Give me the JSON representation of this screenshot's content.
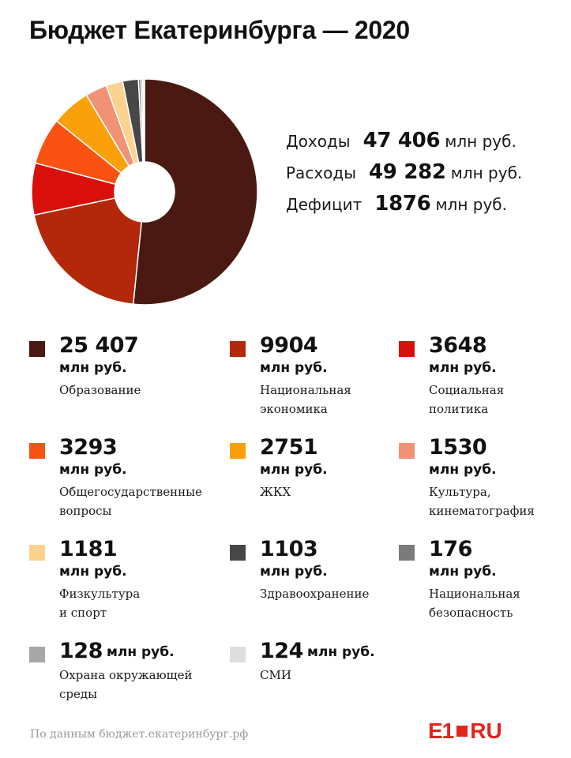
{
  "title": "Бюджет Екатеринбурга — 2020",
  "summary": [
    {
      "label": "Доходы",
      "value": "47 406",
      "unit": "млн руб."
    },
    {
      "label": "Расходы",
      "value": "49 282",
      "unit": "млн руб."
    },
    {
      "label": "Дефицит",
      "value": "1876",
      "unit": "млн руб."
    }
  ],
  "chart_data": {
    "type": "pie",
    "series": [
      {
        "category": "Образование",
        "value": 25407,
        "label": "25 407",
        "color": "#4a1a12"
      },
      {
        "category": "Национальная экономика",
        "value": 9904,
        "label": "9904",
        "color": "#b3280b"
      },
      {
        "category": "Социальная политика",
        "value": 3648,
        "label": "3648",
        "color": "#d90f0b"
      },
      {
        "category": "Общегосударственные вопросы",
        "value": 3293,
        "label": "3293",
        "color": "#fa5212"
      },
      {
        "category": "ЖКХ",
        "value": 2751,
        "label": "2751",
        "color": "#f9a00a"
      },
      {
        "category": "Культура, кинематография",
        "value": 1530,
        "label": "1530",
        "color": "#f19277"
      },
      {
        "category": "Физкультура и спорт",
        "value": 1181,
        "label": "1181",
        "color": "#fcd28f"
      },
      {
        "category": "Здравоохранение",
        "value": 1103,
        "label": "1103",
        "color": "#474747"
      },
      {
        "category": "Национальная безопасность",
        "value": 176,
        "label": "176",
        "color": "#7b7b7b"
      },
      {
        "category": "Охрана окружающей среды",
        "value": 128,
        "label": "128",
        "color": "#a8a8a8"
      },
      {
        "category": "СМИ",
        "value": 124,
        "label": "124",
        "color": "#dedede"
      }
    ],
    "unit": "млн руб.",
    "legend": "bottom",
    "donut": true
  },
  "legend_items": [
    {
      "value": "25 407",
      "unit": "млн руб.",
      "lines": [
        "Образование"
      ],
      "color": "#4a1a12"
    },
    {
      "value": "9904",
      "unit": "млн руб.",
      "lines": [
        "Национальная",
        "экономика"
      ],
      "color": "#b3280b"
    },
    {
      "value": "3648",
      "unit": "млн руб.",
      "lines": [
        "Социальная",
        "политика"
      ],
      "color": "#d90f0b"
    },
    {
      "value": "3293",
      "unit": "млн руб.",
      "lines": [
        "Общегосударственные",
        "вопросы"
      ],
      "color": "#fa5212"
    },
    {
      "value": "2751",
      "unit": "млн руб.",
      "lines": [
        "ЖКХ"
      ],
      "color": "#f9a00a"
    },
    {
      "value": "1530",
      "unit": "млн руб.",
      "lines": [
        "Культура,",
        "кинематография"
      ],
      "color": "#f19277"
    },
    {
      "value": "1181",
      "unit": "млн руб.",
      "lines": [
        "Физкультура",
        "и спорт"
      ],
      "color": "#fcd28f"
    },
    {
      "value": "1103",
      "unit": "млн руб.",
      "lines": [
        "Здравоохранение"
      ],
      "color": "#474747"
    },
    {
      "value": "176",
      "unit": "млн руб.",
      "lines": [
        "Национальная",
        "безопасность"
      ],
      "color": "#7b7b7b"
    },
    {
      "value": "128",
      "unit": "млн руб.",
      "lines": [
        "Охрана окружающей",
        "среды"
      ],
      "color": "#a8a8a8"
    },
    {
      "value": "124",
      "unit": "млн руб.",
      "lines": [
        "СМИ"
      ],
      "color": "#dedede"
    }
  ],
  "source": "По данным бюджет.екатеринбург.рф",
  "logo": {
    "left": "E1",
    "right": "RU",
    "color": "#e2241b"
  }
}
